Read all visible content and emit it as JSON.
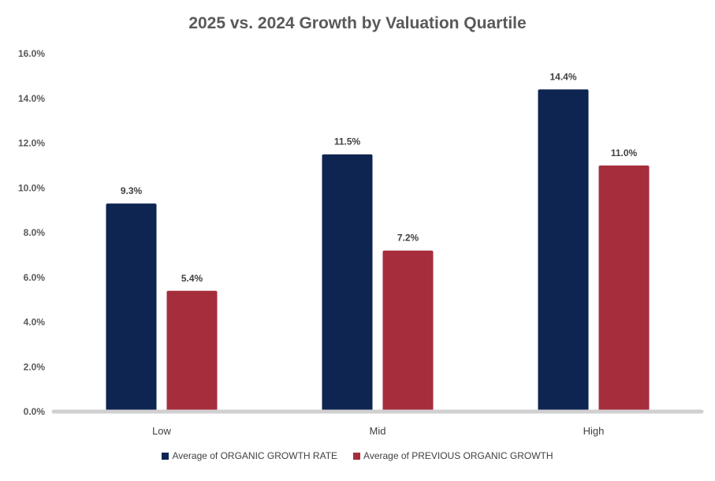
{
  "chart_data": {
    "type": "bar",
    "title": "2025 vs. 2024 Growth by Valuation Quartile",
    "categories": [
      "Low",
      "Mid",
      "High"
    ],
    "series": [
      {
        "name": "Average of ORGANIC GROWTH RATE",
        "color": "#0e2451",
        "values": [
          9.3,
          11.5,
          14.4
        ],
        "labels": [
          "9.3%",
          "11.5%",
          "14.4%"
        ]
      },
      {
        "name": "Average of PREVIOUS ORGANIC GROWTH",
        "color": "#a62e3c",
        "values": [
          5.4,
          7.2,
          11.0
        ],
        "labels": [
          "5.4%",
          "7.2%",
          "11.0%"
        ]
      }
    ],
    "ylim": [
      0,
      16
    ],
    "yticks": [
      0,
      2,
      4,
      6,
      8,
      10,
      12,
      14,
      16
    ],
    "ytick_labels": [
      "0.0%",
      "2.0%",
      "4.0%",
      "6.0%",
      "8.0%",
      "10.0%",
      "12.0%",
      "14.0%",
      "16.0%"
    ],
    "xlabel": "",
    "ylabel": "",
    "grid": false,
    "legend_position": "bottom",
    "axis_color": "#d0d0d0"
  }
}
